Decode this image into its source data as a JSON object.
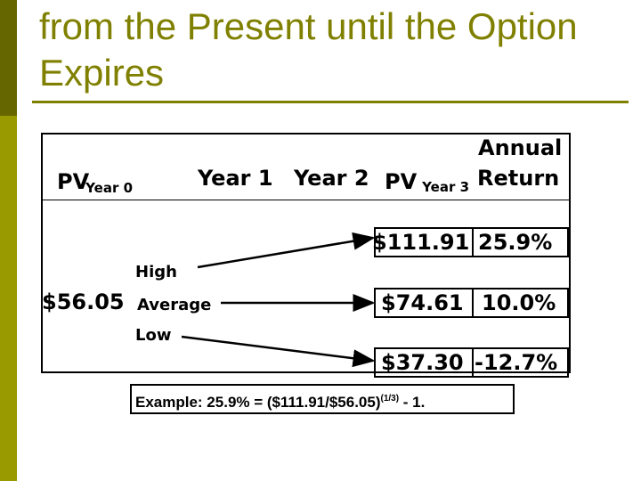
{
  "slide": {
    "title_line1": "from the Present until the Option",
    "title_line2": "Expires",
    "colors": {
      "accent": "#808000",
      "bar_dark": "#666600",
      "bar_light": "#999900"
    }
  },
  "table": {
    "headers": {
      "pv0_main": "PV",
      "pv0_sub": "Year 0",
      "year1": "Year 1",
      "year2": "Year 2",
      "pv3_main": "PV",
      "pv3_sub": "Year 3",
      "annual": "Annual",
      "return": "Return"
    },
    "start_value": "$56.05",
    "branch_labels": [
      "High",
      "Average",
      "Low"
    ],
    "outcomes": [
      {
        "value": "$111.91",
        "return": "25.9%"
      },
      {
        "value": "$74.61",
        "return": "10.0%"
      },
      {
        "value": "$37.30",
        "return": "-12.7%"
      }
    ]
  },
  "example": {
    "text": "Example: 25.9% = ($111.91/$56.05)",
    "exponent": "(1/3)",
    "suffix": " - 1."
  }
}
